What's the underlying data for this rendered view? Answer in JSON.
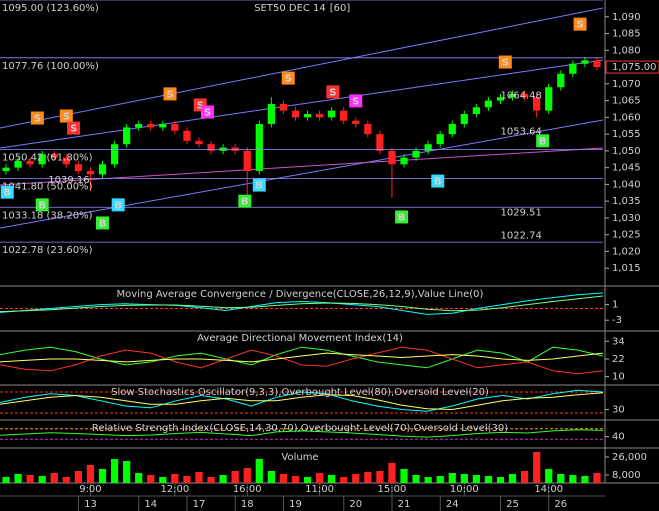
{
  "chart_data": [
    {
      "type": "candlestick",
      "title": "SET50 DEC 14",
      "subtitle": "[60]",
      "categories": [
        null,
        null,
        null,
        null,
        null,
        null,
        null,
        "9:00",
        null,
        null,
        null,
        null,
        null,
        null,
        "12:00",
        null,
        null,
        null,
        null,
        null,
        "16:00",
        null,
        null,
        null,
        null,
        null,
        "11:00",
        null,
        null,
        null,
        null,
        null,
        "15:00",
        null,
        null,
        null,
        null,
        null,
        "10:00",
        null,
        null,
        null,
        null,
        null,
        null,
        "14:00",
        null,
        null,
        null,
        null
      ],
      "dates": [
        null,
        null,
        null,
        null,
        null,
        null,
        null,
        "13",
        null,
        null,
        null,
        null,
        "14",
        null,
        null,
        null,
        "17",
        null,
        null,
        null,
        "18",
        null,
        null,
        null,
        "19",
        null,
        null,
        null,
        null,
        "20",
        null,
        null,
        null,
        "21",
        null,
        null,
        null,
        "24",
        null,
        null,
        null,
        null,
        "25",
        null,
        null,
        null,
        "26",
        null,
        null,
        null
      ],
      "open": [
        1044,
        1045,
        1047,
        1046,
        1049,
        1048,
        1046,
        1044,
        1043,
        1046,
        1052,
        1057,
        1058,
        1057,
        1058,
        1056,
        1053,
        1052,
        1050,
        1051,
        1050,
        1044,
        1058,
        1064,
        1062,
        1060,
        1061,
        1060,
        1062,
        1059,
        1058,
        1055,
        1050,
        1046,
        1048,
        1050,
        1052,
        1055,
        1058,
        1061,
        1063,
        1065,
        1066,
        1067,
        1066,
        1062,
        1069,
        1073,
        1076,
        1077
      ],
      "high": [
        1046,
        1048,
        1048,
        1050,
        1050,
        1049,
        1047,
        1045,
        1047,
        1053,
        1058,
        1059,
        1059,
        1059,
        1059,
        1057,
        1054,
        1053,
        1052,
        1052,
        1051,
        1059,
        1066,
        1065,
        1063,
        1062,
        1062,
        1063,
        1063,
        1060,
        1059,
        1056,
        1051,
        1049,
        1051,
        1053,
        1056,
        1059,
        1062,
        1064,
        1066,
        1067,
        1068,
        1068,
        1067,
        1070,
        1074,
        1077,
        1078,
        1078
      ],
      "low": [
        1043,
        1044,
        1045,
        1045,
        1047,
        1045,
        1043,
        1038,
        1042,
        1045,
        1051,
        1056,
        1056,
        1056,
        1055,
        1052,
        1051,
        1049,
        1049,
        1049,
        1034,
        1043,
        1057,
        1061,
        1059,
        1059,
        1059,
        1059,
        1058,
        1057,
        1054,
        1049,
        1036,
        1045,
        1047,
        1049,
        1051,
        1054,
        1057,
        1060,
        1062,
        1064,
        1065,
        1065,
        1060,
        1061,
        1068,
        1072,
        1075,
        1074
      ],
      "close": [
        1045,
        1047,
        1046,
        1049,
        1048,
        1046,
        1044,
        1043,
        1046,
        1052,
        1057,
        1058,
        1057,
        1058,
        1056,
        1053,
        1052,
        1050,
        1051,
        1050,
        1044,
        1058,
        1064,
        1062,
        1060,
        1061,
        1060,
        1062,
        1059,
        1058,
        1055,
        1050,
        1046,
        1048,
        1050,
        1052,
        1055,
        1058,
        1061,
        1063,
        1065,
        1066,
        1067,
        1066,
        1062,
        1069,
        1073,
        1076,
        1077,
        1075
      ],
      "up_color": "#00ff00",
      "down_color": "#ff2020",
      "ylim": [
        1010,
        1095
      ],
      "yticks": [
        {
          "value": 1015,
          "label": "1,015"
        },
        {
          "value": 1020,
          "label": "1,020"
        },
        {
          "value": 1025,
          "label": "1,025"
        },
        {
          "value": 1030,
          "label": "1,030"
        },
        {
          "value": 1035,
          "label": "1,035"
        },
        {
          "value": 1040,
          "label": "1,040"
        },
        {
          "value": 1045,
          "label": "1,045"
        },
        {
          "value": 1050,
          "label": "1,050"
        },
        {
          "value": 1055,
          "label": "1,055"
        },
        {
          "value": 1060,
          "label": "1,060"
        },
        {
          "value": 1065,
          "label": "1,065"
        },
        {
          "value": 1070,
          "label": "1,070"
        },
        {
          "value": 1075,
          "label": "1,075"
        },
        {
          "value": 1080,
          "label": "1,080"
        },
        {
          "value": 1085,
          "label": "1,085"
        },
        {
          "value": 1090,
          "label": "1,090"
        }
      ],
      "levels": [
        {
          "value": 1095,
          "label": "1095.00 (123.60%)"
        },
        {
          "value": 1077.76,
          "label": "1077.76 (100.00%)"
        },
        {
          "value": 1050.42,
          "label": "1050.42 (61.80%)"
        },
        {
          "value": 1041.8,
          "label": "1041.80 (50.00%)"
        },
        {
          "value": 1033.18,
          "label": "1033.18 (38.20%)"
        },
        {
          "value": 1022.78,
          "label": "1022.78 (23.60%)"
        }
      ],
      "annotations": [
        {
          "x": 41,
          "value": 1064.48,
          "label": "1064.48"
        },
        {
          "x": 41,
          "value": 1053.64,
          "label": "1053.64"
        },
        {
          "x": 41,
          "value": 1029.51,
          "label": "1029.51"
        },
        {
          "x": 41,
          "value": 1022.74,
          "label": "1022.74"
        },
        {
          "x": 3.5,
          "value": 1039.16,
          "label": "1039.16"
        }
      ],
      "last_price": {
        "value": 1075,
        "label": "1,075.00"
      },
      "signals": [
        {
          "label": "S",
          "color": "#ff8c1a",
          "x": 2.6,
          "y": 1059.8
        },
        {
          "label": "S",
          "color": "#ff8c1a",
          "x": 5,
          "y": 1060.4
        },
        {
          "label": "S",
          "color": "#ff8c1a",
          "x": 13.6,
          "y": 1067
        },
        {
          "label": "S",
          "color": "#ff8c1a",
          "x": 23.4,
          "y": 1071.7
        },
        {
          "label": "S",
          "color": "#ff8c1a",
          "x": 41.4,
          "y": 1076.5
        },
        {
          "label": "S",
          "color": "#ff8c1a",
          "x": 47.6,
          "y": 1087.8
        },
        {
          "label": "S",
          "color": "#ff3030",
          "x": 5.6,
          "y": 1056.8
        },
        {
          "label": "S",
          "color": "#ff3030",
          "x": 16.1,
          "y": 1063.7
        },
        {
          "label": "S",
          "color": "#ff3030",
          "x": 27.1,
          "y": 1067.6
        },
        {
          "label": "S",
          "color": "#ff30ff",
          "x": 16.7,
          "y": 1061.6
        },
        {
          "label": "S",
          "color": "#ff30ff",
          "x": 29,
          "y": 1064.9
        },
        {
          "label": "B",
          "color": "#33ddff",
          "x": 0.1,
          "y": 1037.7
        },
        {
          "label": "B",
          "color": "#33ddff",
          "x": 9.3,
          "y": 1033.9
        },
        {
          "label": "B",
          "color": "#33ddff",
          "x": 21,
          "y": 1039.8
        },
        {
          "label": "B",
          "color": "#33ddff",
          "x": 35.8,
          "y": 1041
        },
        {
          "label": "B",
          "color": "#33ee33",
          "x": 3,
          "y": 1033.9
        },
        {
          "label": "B",
          "color": "#33ee33",
          "x": 8,
          "y": 1028.5
        },
        {
          "label": "B",
          "color": "#33ee33",
          "x": 19.8,
          "y": 1035
        },
        {
          "label": "B",
          "color": "#33ee33",
          "x": 32.8,
          "y": 1030.3
        },
        {
          "label": "B",
          "color": "#33ee33",
          "x": 44.5,
          "y": 1053
        }
      ]
    },
    {
      "type": "line",
      "title": "Moving Average Convergence / Divergence(CLOSE,26,12,9),Value Line(0)",
      "ylim": [
        -5.5,
        5.5
      ],
      "yticks": [
        1,
        -3
      ],
      "hlines": [
        {
          "value": 0,
          "color": "#ff3030"
        }
      ],
      "series": [
        {
          "color": "#00ffff",
          "values": [
            -1,
            -0.5,
            0,
            0.5,
            1,
            1.2,
            1,
            0.8,
            0.2,
            -0.5,
            0.5,
            1.5,
            1.8,
            1.5,
            1,
            0.5,
            -0.5,
            -1.5,
            -1.2,
            0,
            1,
            2,
            2.8,
            3.5,
            4
          ]
        },
        {
          "color": "#7fff7f",
          "values": [
            -0.8,
            -0.6,
            -0.3,
            0.1,
            0.5,
            0.8,
            0.9,
            0.9,
            0.6,
            0.2,
            0.3,
            0.8,
            1.2,
            1.4,
            1.3,
            1,
            0.5,
            -0.2,
            -0.6,
            -0.4,
            0.2,
            1,
            1.8,
            2.5,
            3.2
          ]
        }
      ]
    },
    {
      "type": "line",
      "title": "Average Directional Movement Index(14)",
      "ylim": [
        5,
        41
      ],
      "yticks": [
        34,
        22,
        10
      ],
      "hlines": [],
      "series": [
        {
          "color": "#33ff33",
          "values": [
            25,
            28,
            30,
            27,
            22,
            18,
            20,
            24,
            26,
            22,
            18,
            25,
            30,
            28,
            24,
            20,
            18,
            16,
            22,
            28,
            26,
            20,
            30,
            28,
            24
          ]
        },
        {
          "color": "#ff3030",
          "values": [
            18,
            15,
            14,
            18,
            24,
            28,
            26,
            20,
            16,
            22,
            28,
            24,
            18,
            17,
            22,
            26,
            30,
            28,
            22,
            16,
            18,
            20,
            14,
            12,
            14
          ]
        },
        {
          "color": "#ffff66",
          "values": [
            20,
            21,
            22,
            22,
            21,
            20,
            21,
            22,
            22,
            21,
            20,
            22,
            24,
            26,
            25,
            24,
            23,
            24,
            25,
            24,
            22,
            21,
            22,
            24,
            26
          ]
        }
      ]
    },
    {
      "type": "line",
      "title": "Slow Stochastics Oscillator(9,3,3),Overbought Level(80),Oversold Level(20)",
      "ylim": [
        0,
        100
      ],
      "yticks": [
        30
      ],
      "hlines": [
        {
          "value": 80,
          "color": "#ff3030"
        },
        {
          "value": 20,
          "color": "#ff3030"
        }
      ],
      "series": [
        {
          "color": "#00ffff",
          "values": [
            50,
            65,
            75,
            70,
            55,
            40,
            35,
            55,
            70,
            60,
            40,
            65,
            80,
            75,
            55,
            40,
            30,
            25,
            40,
            60,
            70,
            60,
            75,
            85,
            80
          ]
        },
        {
          "color": "#ffff66",
          "values": [
            45,
            55,
            65,
            70,
            65,
            55,
            45,
            45,
            55,
            62,
            55,
            55,
            65,
            72,
            70,
            58,
            42,
            32,
            30,
            42,
            55,
            62,
            65,
            72,
            78
          ]
        }
      ]
    },
    {
      "type": "line",
      "title": "Relative Strength Index(CLOSE,14,30,70),Overbought Level(70),Oversold Level(30)",
      "ylim": [
        0,
        100
      ],
      "yticks": [
        40
      ],
      "hlines": [
        {
          "value": 70,
          "color": "#ff9900"
        },
        {
          "value": 30,
          "color": "#cc33cc"
        }
      ],
      "series": [
        {
          "color": "#33ff33",
          "values": [
            45,
            50,
            55,
            52,
            48,
            44,
            46,
            52,
            56,
            50,
            44,
            58,
            62,
            58,
            54,
            48,
            42,
            38,
            44,
            52,
            56,
            54,
            62,
            66,
            64
          ]
        }
      ]
    },
    {
      "type": "bar",
      "title": "Volume",
      "ylim": [
        0,
        33000
      ],
      "yticks": [
        {
          "value": 26000,
          "label": "26,000"
        },
        {
          "value": 8000,
          "label": "8,000"
        }
      ],
      "values": [
        6000,
        9000,
        8000,
        7000,
        10000,
        6000,
        12000,
        18000,
        14000,
        24000,
        22000,
        10000,
        8000,
        6000,
        9000,
        7000,
        11000,
        6000,
        8000,
        12000,
        15000,
        24000,
        12000,
        9000,
        7000,
        6000,
        10000,
        8000,
        6000,
        9000,
        11000,
        12000,
        20000,
        14000,
        8000,
        6000,
        7000,
        10000,
        9000,
        8000,
        7000,
        6000,
        9000,
        12000,
        31000,
        14000,
        9000,
        8000,
        7000,
        10000
      ]
    }
  ]
}
